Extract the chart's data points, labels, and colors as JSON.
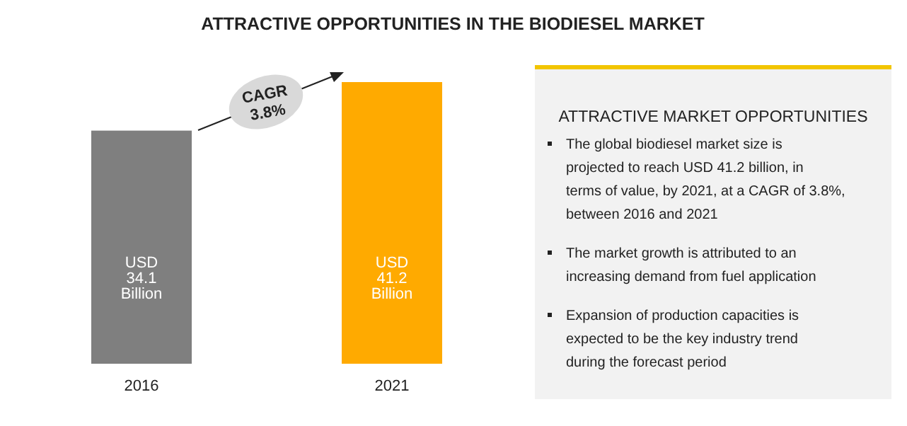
{
  "chart_data": {
    "type": "bar",
    "title": "ATTRACTIVE OPPORTUNITIES IN THE BIODIESEL MARKET",
    "categories": [
      "2016",
      "2021"
    ],
    "values": [
      34.1,
      41.2
    ],
    "colors": [
      "#7f7f7f",
      "#ffaa00"
    ],
    "value_labels": [
      "USD 34.1 Billion",
      "USD 41.2 Billion"
    ],
    "annotations": [
      "CAGR 3.8%",
      "ATTRACTIVE MARKET OPPORTUNITIES",
      "The global biodiesel market size is projected to reach USD 41.2 billion, in terms of value, by 2021, at a CAGR of 3.8%, between 2016 and 2021",
      "The market growth is attributed to an increasing demand from fuel application",
      "Expansion of production capacities is expected to be the key industry trend during the forecast period"
    ]
  }
}
